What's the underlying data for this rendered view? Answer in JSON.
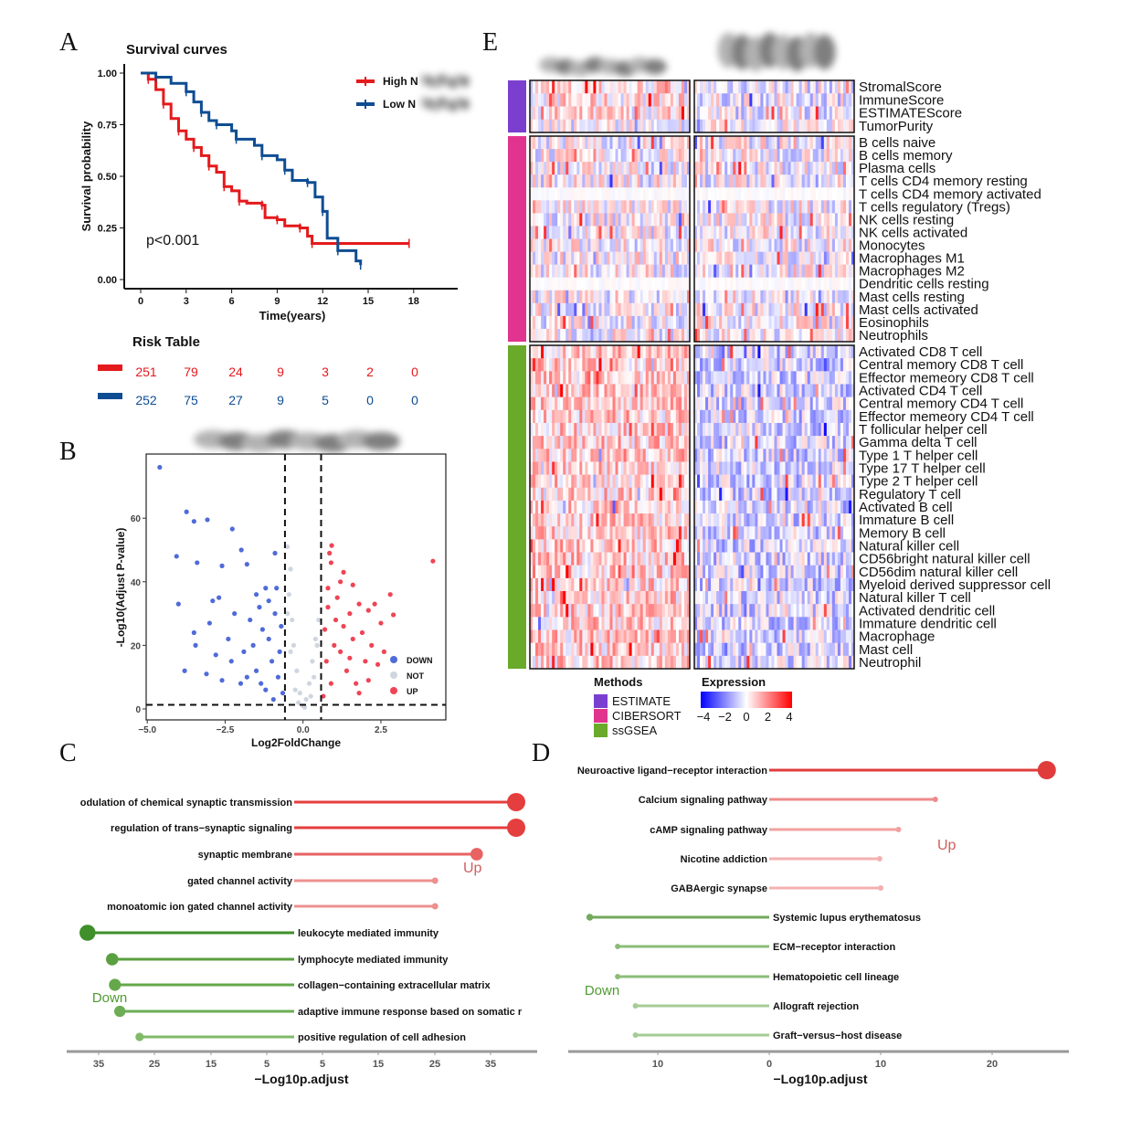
{
  "panel_letters": [
    "A",
    "B",
    "C",
    "D",
    "E"
  ],
  "chart_data": [
    {
      "panel": "A",
      "type": "line",
      "title": "Survival curves",
      "xlabel": "Time(years)",
      "ylabel": "Survival probability",
      "xlim": [
        0,
        20
      ],
      "ylim": [
        0,
        1
      ],
      "xticks": [
        0,
        3,
        6,
        9,
        12,
        15,
        18
      ],
      "yticks": [
        "0.00",
        "0.25",
        "0.50",
        "0.75",
        "1.00"
      ],
      "annotation": "p<0.001",
      "legend_position": "top-right",
      "series": [
        {
          "name": "High N",
          "color": "#e41a1c",
          "points": [
            [
              0,
              1.0
            ],
            [
              0.5,
              0.97
            ],
            [
              1,
              0.92
            ],
            [
              1.5,
              0.85
            ],
            [
              2,
              0.78
            ],
            [
              2.5,
              0.72
            ],
            [
              3,
              0.68
            ],
            [
              3.5,
              0.64
            ],
            [
              4,
              0.6
            ],
            [
              4.5,
              0.55
            ],
            [
              5,
              0.52
            ],
            [
              5.5,
              0.45
            ],
            [
              6,
              0.43
            ],
            [
              6.5,
              0.38
            ],
            [
              7,
              0.37
            ],
            [
              8,
              0.36
            ],
            [
              8.2,
              0.3
            ],
            [
              9,
              0.29
            ],
            [
              9.5,
              0.26
            ],
            [
              10.5,
              0.25
            ],
            [
              11,
              0.21
            ],
            [
              11.3,
              0.175
            ],
            [
              17.7,
              0.175
            ]
          ]
        },
        {
          "name": "Low N",
          "color": "#0e4d92",
          "points": [
            [
              0,
              1.0
            ],
            [
              1,
              0.98
            ],
            [
              2,
              0.95
            ],
            [
              3,
              0.91
            ],
            [
              3.5,
              0.86
            ],
            [
              4,
              0.81
            ],
            [
              4.5,
              0.77
            ],
            [
              5,
              0.75
            ],
            [
              6,
              0.72
            ],
            [
              6.3,
              0.68
            ],
            [
              7.5,
              0.65
            ],
            [
              8,
              0.6
            ],
            [
              9,
              0.58
            ],
            [
              9.5,
              0.53
            ],
            [
              10,
              0.48
            ],
            [
              11,
              0.47
            ],
            [
              11.5,
              0.4
            ],
            [
              12,
              0.33
            ],
            [
              12.3,
              0.2
            ],
            [
              13,
              0.14
            ],
            [
              14.2,
              0.09
            ],
            [
              14.5,
              0.07
            ]
          ]
        }
      ],
      "risk_table": {
        "title": "Risk Table",
        "rows": [
          {
            "color": "#e41a1c",
            "values": [
              "251",
              "79",
              "24",
              "9",
              "3",
              "2",
              "0"
            ]
          },
          {
            "color": "#0e4d92",
            "values": [
              "252",
              "75",
              "27",
              "9",
              "5",
              "0",
              "0"
            ]
          }
        ]
      }
    },
    {
      "panel": "B",
      "type": "scatter",
      "xlabel": "Log2FoldChange",
      "ylabel": "-Log10(Adjust P-value)",
      "xlim": [
        -5,
        4.6
      ],
      "ylim": [
        -3,
        80
      ],
      "xticks": [
        "-5.0",
        "-2.5",
        "0.0",
        "2.5"
      ],
      "yticks": [
        "0",
        "20",
        "40",
        "60"
      ],
      "thresholds": {
        "log2fc": [
          -0.58,
          0.58
        ],
        "neg_log10_p": 1.3
      },
      "legend_position": "bottom-right",
      "legend": [
        {
          "name": "DOWN",
          "color": "#4f6bd8"
        },
        {
          "name": "NOT",
          "color": "#cfd6df"
        },
        {
          "name": "UP",
          "color": "#ef4455"
        }
      ],
      "points": {
        "DOWN": [
          [
            -4.6,
            76
          ],
          [
            -3.74,
            62
          ],
          [
            -3.5,
            59
          ],
          [
            -3.07,
            59.5
          ],
          [
            -2.27,
            56.6
          ],
          [
            -4.06,
            48
          ],
          [
            -1.98,
            50
          ],
          [
            -3.4,
            46
          ],
          [
            -4.0,
            33
          ],
          [
            -3.8,
            12
          ],
          [
            -2.6,
            45
          ],
          [
            -1.8,
            45.5
          ],
          [
            -0.9,
            49
          ],
          [
            -1.2,
            38
          ],
          [
            -1.5,
            36
          ],
          [
            -2.9,
            34
          ],
          [
            -3.5,
            24
          ],
          [
            -3.45,
            20
          ],
          [
            -3.0,
            27
          ],
          [
            -2.7,
            35
          ],
          [
            -2.4,
            22
          ],
          [
            -2.2,
            30
          ],
          [
            -1.9,
            18
          ],
          [
            -1.7,
            28
          ],
          [
            -1.4,
            32
          ],
          [
            -1.3,
            25
          ],
          [
            -1.1,
            22
          ],
          [
            -1.0,
            15
          ],
          [
            -0.9,
            30
          ],
          [
            -0.8,
            10
          ],
          [
            -0.7,
            26
          ],
          [
            -0.65,
            5
          ],
          [
            -1.5,
            12
          ],
          [
            -2.0,
            8
          ],
          [
            -2.6,
            9
          ],
          [
            -3.1,
            11
          ],
          [
            -1.2,
            6
          ],
          [
            -0.75,
            18
          ],
          [
            -0.95,
            3
          ],
          [
            -1.6,
            20
          ],
          [
            -1.1,
            34
          ],
          [
            -0.85,
            38
          ],
          [
            -2.3,
            15
          ],
          [
            -1.8,
            10
          ],
          [
            -2.8,
            17
          ],
          [
            -1.35,
            8
          ]
        ],
        "NOT": [
          [
            -0.5,
            51
          ],
          [
            -0.4,
            44
          ],
          [
            -0.45,
            36
          ],
          [
            -0.35,
            28
          ],
          [
            -0.3,
            20
          ],
          [
            -0.2,
            12
          ],
          [
            -0.1,
            5
          ],
          [
            0,
            1
          ],
          [
            0.1,
            3
          ],
          [
            0.2,
            8
          ],
          [
            0.3,
            15
          ],
          [
            0.4,
            22
          ],
          [
            0.5,
            28
          ],
          [
            0.45,
            20
          ],
          [
            -0.5,
            30
          ],
          [
            -0.4,
            18
          ],
          [
            0.35,
            10
          ],
          [
            -0.25,
            6
          ],
          [
            0.05,
            0.5
          ],
          [
            -0.15,
            2
          ],
          [
            0.25,
            4
          ]
        ],
        "UP": [
          [
            0.92,
            51.4
          ],
          [
            0.85,
            49
          ],
          [
            0.9,
            46
          ],
          [
            1.3,
            43
          ],
          [
            1.2,
            40
          ],
          [
            1.6,
            39
          ],
          [
            2.8,
            36
          ],
          [
            2.9,
            29.6
          ],
          [
            4.17,
            46.5
          ],
          [
            2.3,
            33
          ],
          [
            2.1,
            31
          ],
          [
            2.5,
            27
          ],
          [
            1.8,
            33
          ],
          [
            1.5,
            30
          ],
          [
            1.1,
            35
          ],
          [
            0.8,
            32
          ],
          [
            0.7,
            25
          ],
          [
            0.75,
            15
          ],
          [
            0.9,
            8
          ],
          [
            1.0,
            20
          ],
          [
            1.2,
            18
          ],
          [
            1.4,
            12
          ],
          [
            1.6,
            22
          ],
          [
            1.9,
            24
          ],
          [
            2.0,
            15
          ],
          [
            2.2,
            20
          ],
          [
            2.4,
            14
          ],
          [
            1.7,
            8
          ],
          [
            0.65,
            4
          ],
          [
            1.3,
            26
          ],
          [
            1.05,
            28
          ],
          [
            0.8,
            38
          ],
          [
            1.8,
            5
          ],
          [
            2.1,
            9
          ],
          [
            2.6,
            18
          ],
          [
            1.5,
            16
          ]
        ]
      }
    },
    {
      "panel": "C",
      "type": "bar",
      "subtype": "diverging-lollipop",
      "xlabel": "-Log10p.adjust",
      "xticks": [
        "35",
        "25",
        "15",
        "5",
        "5",
        "15",
        "25",
        "35"
      ],
      "group_labels": {
        "up": "Up",
        "down": "Down"
      },
      "colors": {
        "up": "#e03c3c",
        "down": "#3f8f2a"
      },
      "items": [
        {
          "label": "odulation of chemical synaptic transmission",
          "direction": "up",
          "value": 40.5
        },
        {
          "label": "regulation of trans−synaptic signaling",
          "direction": "up",
          "value": 40.5
        },
        {
          "label": "synaptic membrane",
          "direction": "up",
          "value": 33.3
        },
        {
          "label": "gated channel activity",
          "direction": "up",
          "value": 25.7
        },
        {
          "label": "monoatomic ion gated channel activity",
          "direction": "up",
          "value": 25.7
        },
        {
          "label": "leukocyte mediated immunity",
          "direction": "down",
          "value": 37.7
        },
        {
          "label": "lymphocyte mediated immunity",
          "direction": "down",
          "value": 33.2
        },
        {
          "label": "collagen−containing extracellular matrix",
          "direction": "down",
          "value": 32.7
        },
        {
          "label": "adaptive immune response based on somatic r",
          "direction": "down",
          "value": 31.8
        },
        {
          "label": "positive regulation of cell adhesion",
          "direction": "down",
          "value": 28.2
        }
      ]
    },
    {
      "panel": "D",
      "type": "bar",
      "subtype": "diverging-lollipop",
      "xlabel": "-Log10p.adjust",
      "xticks": [
        "10",
        "0",
        "10",
        "20"
      ],
      "group_labels": {
        "up": "Up",
        "down": "Down"
      },
      "colors": {
        "up": "#e03c3c",
        "down": "#6aaa50"
      },
      "items": [
        {
          "label": "Neuroactive ligand−receptor interaction",
          "direction": "up",
          "value": 24.9
        },
        {
          "label": "Calcium signaling pathway",
          "direction": "up",
          "value": 14.9
        },
        {
          "label": "cAMP signaling pathway",
          "direction": "up",
          "value": 11.6
        },
        {
          "label": "Nicotine addiction",
          "direction": "up",
          "value": 9.9
        },
        {
          "label": "GABAergic synapse",
          "direction": "up",
          "value": 10.0
        },
        {
          "label": "Systemic lupus erythematosus",
          "direction": "down",
          "value": 16.1
        },
        {
          "label": "ECM−receptor interaction",
          "direction": "down",
          "value": 13.6
        },
        {
          "label": "Hematopoietic cell lineage",
          "direction": "down",
          "value": 13.6
        },
        {
          "label": "Allograft rejection",
          "direction": "down",
          "value": 12.0
        },
        {
          "label": "Graft−versus−host disease",
          "direction": "down",
          "value": 12.0
        }
      ]
    },
    {
      "panel": "E",
      "type": "heatmap",
      "color_scale": {
        "title": "Expression",
        "range": [
          -4,
          4
        ],
        "ticks": [
          "−4",
          "−2",
          "0",
          "2",
          "4"
        ],
        "low": "#0000ff",
        "mid": "#ffffff",
        "high": "#ff0000"
      },
      "methods_legend": {
        "title": "Methods"
      },
      "groups": [
        {
          "method": "ESTIMATE",
          "color": "#7b3fd0",
          "rows": [
            "StromalScore",
            "ImmuneScore",
            "ESTIMATEScore",
            "TumorPurity"
          ]
        },
        {
          "method": "CIBERSORT",
          "color": "#e0348f",
          "rows": [
            "B cells naive",
            "B cells memory",
            "Plasma cells",
            "T cells CD4 memory resting",
            "T cells CD4 memory activated",
            "T cells regulatory (Tregs)",
            "NK cells resting",
            "NK cells activated",
            "Monocytes",
            "Macrophages M1",
            "Macrophages M2",
            "Dendritic cells resting",
            "Mast cells resting",
            "Mast cells activated",
            "Eosinophils",
            "Neutrophils"
          ]
        },
        {
          "method": "ssGSEA",
          "color": "#6aaa2a",
          "rows": [
            "Activated CD8 T cell",
            "Central memory CD8 T cell",
            "Effector memeory CD8 T cell",
            "Activated CD4 T cell",
            "Central memory CD4 T cell",
            "Effector memeory CD4 T cell",
            "T follicular helper cell",
            "Gamma delta T cell",
            "Type 1 T helper cell",
            "Type 17 T helper cell",
            "Type 2 T helper cell",
            "Regulatory T cell",
            "Activated B cell",
            "Immature  B cell",
            "Memory B cell",
            "Natural killer cell",
            "CD56bright natural killer cell",
            "CD56dim natural killer cell",
            "Myeloid derived suppressor cell",
            "Natural killer T cell",
            "Activated dendritic cell",
            "Immature dendritic cell",
            "Macrophage",
            "Mast cell",
            "Neutrophil"
          ]
        }
      ]
    }
  ]
}
